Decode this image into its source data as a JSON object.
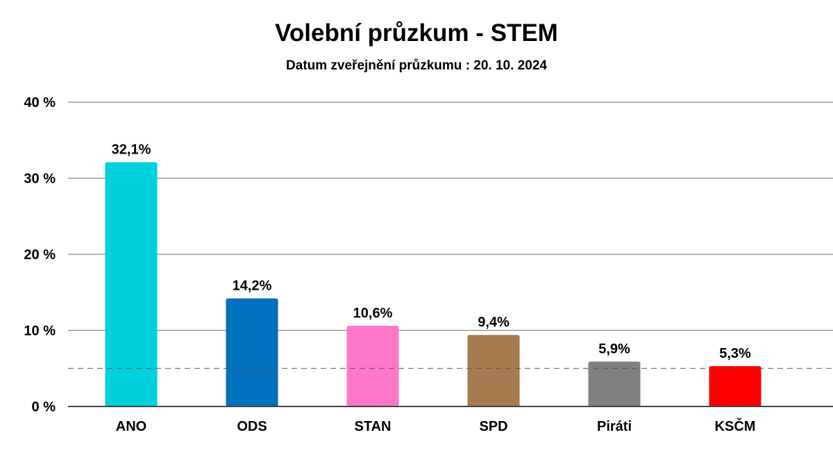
{
  "chart_data": {
    "type": "bar",
    "title": "Volební průzkum - STEM",
    "subtitle": "Datum zveřejnění průzkumu : 20. 10. 2024",
    "categories": [
      "ANO",
      "ODS",
      "STAN",
      "SPD",
      "Piráti",
      "KSČM"
    ],
    "values": [
      32.1,
      14.2,
      10.6,
      9.4,
      5.9,
      5.3
    ],
    "data_labels": [
      "32,1%",
      "14,2%",
      "10,6%",
      "9,4%",
      "5,9%",
      "5,3%"
    ],
    "colors": [
      "#00d1dc",
      "#0070bf",
      "#ff77c8",
      "#a67b50",
      "#808080",
      "#ff0000"
    ],
    "ylim": [
      0,
      40
    ],
    "yticks": [
      0,
      10,
      20,
      30,
      40
    ],
    "ytick_labels": [
      "0 %",
      "10 %",
      "20 %",
      "30 %",
      "40 %"
    ],
    "threshold_line": {
      "value": 5,
      "style": "dashed"
    },
    "grid": true,
    "xlabel": "",
    "ylabel": ""
  }
}
